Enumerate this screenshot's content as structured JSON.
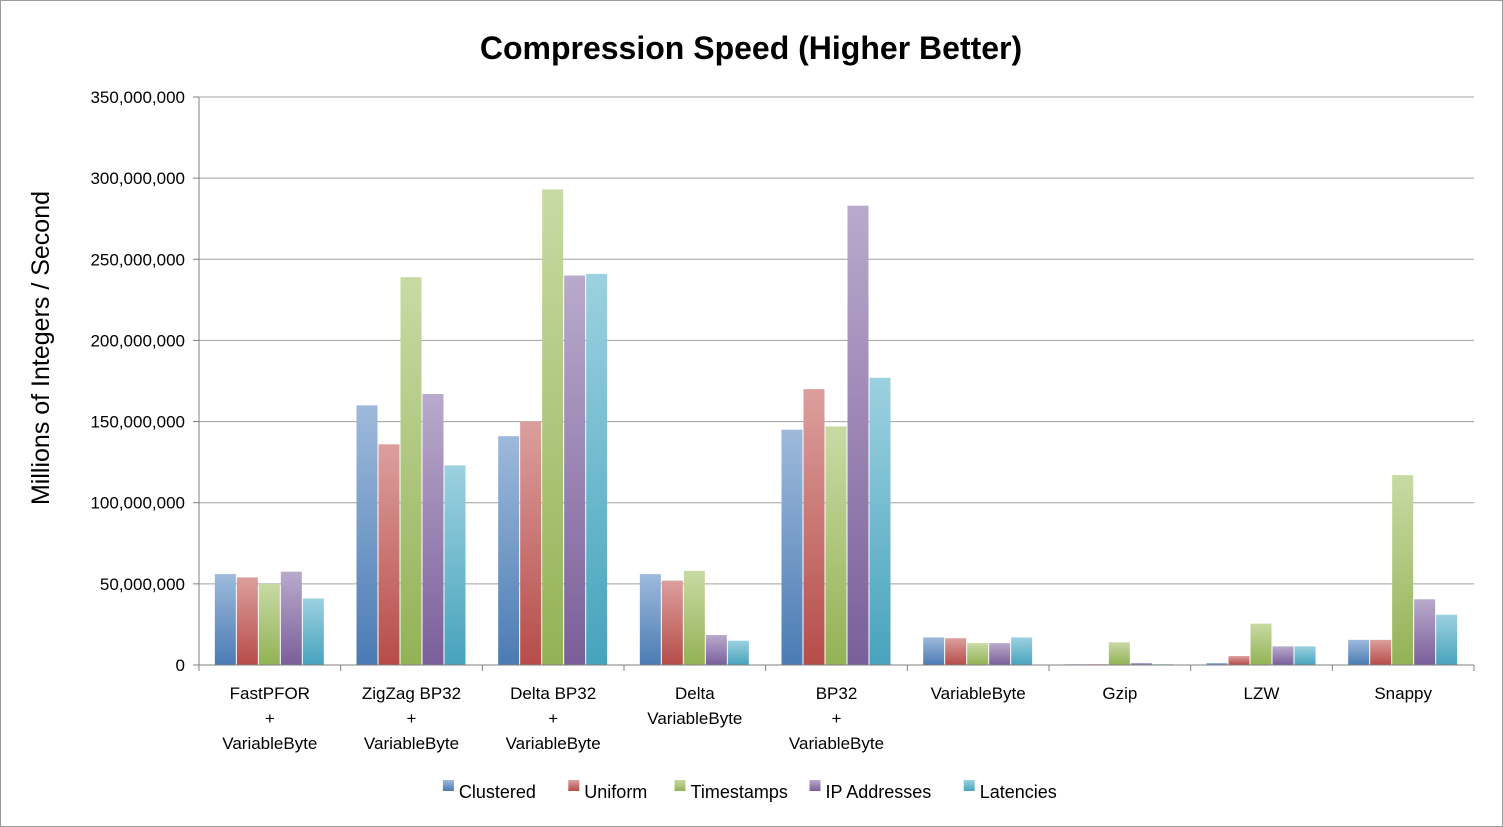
{
  "chart_data": {
    "type": "bar",
    "title": "Compression Speed (Higher Better)",
    "xlabel": "",
    "ylabel": "Millions of Integers / Second",
    "ylim": [
      0,
      350000000
    ],
    "yticks": [
      0,
      50000000,
      100000000,
      150000000,
      200000000,
      250000000,
      300000000,
      350000000
    ],
    "ytick_labels": [
      "0",
      "50,000,000",
      "100,000,000",
      "150,000,000",
      "200,000,000",
      "250,000,000",
      "300,000,000",
      "350,000,000"
    ],
    "grid": true,
    "legend_position": "bottom",
    "categories": [
      [
        "FastPFOR",
        "+",
        "VariableByte"
      ],
      [
        "ZigZag BP32",
        "+",
        "VariableByte"
      ],
      [
        "Delta BP32",
        "+",
        "VariableByte"
      ],
      [
        "Delta",
        "VariableByte"
      ],
      [
        "BP32",
        "+",
        "VariableByte"
      ],
      [
        "VariableByte"
      ],
      [
        "Gzip"
      ],
      [
        "LZW"
      ],
      [
        "Snappy"
      ]
    ],
    "series": [
      {
        "name": "Clustered",
        "color": "#4f81bd",
        "values": [
          56000000,
          160000000,
          141000000,
          56000000,
          145000000,
          17000000,
          300000,
          1200000,
          15500000
        ]
      },
      {
        "name": "Uniform",
        "color": "#c0504d",
        "values": [
          54000000,
          136000000,
          150000000,
          52000000,
          170000000,
          16500000,
          300000,
          5500000,
          15500000
        ]
      },
      {
        "name": "Timestamps",
        "color": "#9bbb59",
        "values": [
          50000000,
          239000000,
          293000000,
          58000000,
          147000000,
          13500000,
          14000000,
          25500000,
          117000000
        ]
      },
      {
        "name": "IP Addresses",
        "color": "#8064a2",
        "values": [
          57500000,
          167000000,
          240000000,
          18500000,
          283000000,
          13500000,
          1200000,
          11500000,
          40500000
        ]
      },
      {
        "name": "Latencies",
        "color": "#4bacc6",
        "values": [
          41000000,
          123000000,
          241000000,
          15000000,
          177000000,
          17000000,
          500000,
          11500000,
          31000000
        ]
      }
    ]
  },
  "colors": {
    "grid": "#a0a0a0",
    "axis": "#7f7f7f"
  }
}
